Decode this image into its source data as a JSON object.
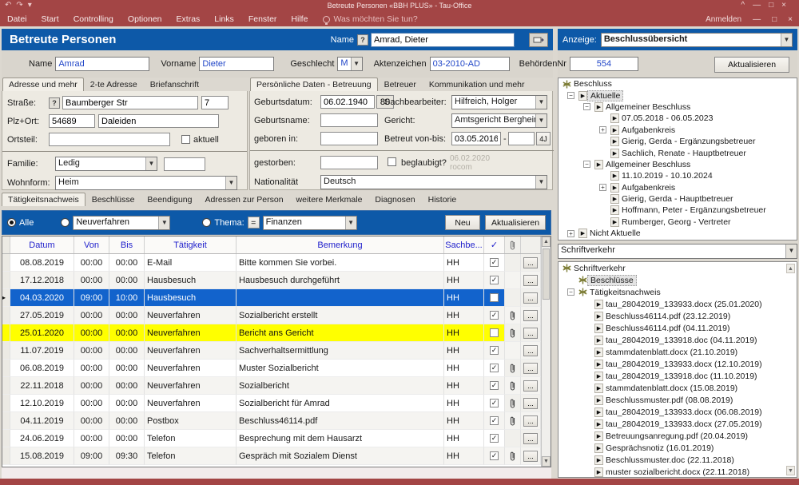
{
  "window": {
    "title": "Betreute Personen «BBH PLUS» - Tau-Office",
    "signin": "Anmelden"
  },
  "menu": {
    "items": [
      "Datei",
      "Start",
      "Controlling",
      "Optionen",
      "Extras",
      "Links",
      "Fenster",
      "Hilfe"
    ],
    "tellme": "Was möchten Sie tun?"
  },
  "header": {
    "title": "Betreute Personen",
    "name_label": "Name",
    "name_value": "Amrad, Dieter",
    "help_button": "?"
  },
  "person": {
    "labels": {
      "name": "Name",
      "vorname": "Vorname",
      "geschlecht": "Geschlecht",
      "aktenzeichen": "Aktenzeichen",
      "behoerde": "BehördenNr"
    },
    "values": {
      "name": "Amrad",
      "vorname": "Dieter",
      "geschlecht": "M",
      "aktenzeichen": "03-2010-AD",
      "behoerde": "554"
    }
  },
  "address_panel": {
    "tabs": [
      "Adresse und mehr",
      "2-te Adresse",
      "Briefanschrift"
    ],
    "active_tab": 0,
    "labels": {
      "strasse": "Straße:",
      "plzort": "Plz+Ort:",
      "ortsteil": "Ortsteil:",
      "aktuell": "aktuell",
      "familie": "Familie:",
      "wohnform": "Wohnform:",
      "help_button": "?"
    },
    "values": {
      "strasse": "Baumberger Str",
      "hausnr": "7",
      "plz": "54689",
      "ort": "Daleiden",
      "ortsteil": "",
      "familie": "Ledig",
      "wohnform": "Heim"
    }
  },
  "personal_panel": {
    "tabs": [
      "Persönliche Daten - Betreuung",
      "Betreuer",
      "Kommunikation und mehr"
    ],
    "active_tab": 0,
    "labels": {
      "geburtsdatum": "Geburtsdatum:",
      "geburtsname": "Geburtsname:",
      "geboren_in": "geboren in:",
      "gestorben": "gestorben:",
      "beglaubigt": "beglaubigt?",
      "nationalitaet": "Nationalität",
      "sachbearbeiter": "Sachbearbeiter:",
      "gericht": "Gericht:",
      "betreut": "Betreut von-bis:"
    },
    "values": {
      "geburtsdatum": "06.02.1940",
      "alter": "80",
      "geburtsname": "",
      "geboren_in": "",
      "gestorben": "",
      "nationalitaet": "Deutsch",
      "sachbearbeiter": "Hilfreich, Holger",
      "gericht": "Amtsgericht Bergheim",
      "betreut_von": "03.05.2016",
      "betreut_bis": "",
      "dash": "-",
      "jahre_button": "4J",
      "watermark_date": "06.02.2020",
      "watermark_brand": "rocom"
    }
  },
  "section_tabs": {
    "tabs": [
      "Tätigkeitsnachweis",
      "Beschlüsse",
      "Beendigung",
      "Adressen zur Person",
      "weitere Merkmale",
      "Diagnosen",
      "Historie"
    ],
    "active": 0
  },
  "filter": {
    "alle": "Alle",
    "verfahren": "Neuverfahren",
    "thema_label": "Thema:",
    "equals": "=",
    "thema": "Finanzen",
    "neu_button": "Neu",
    "aktualisieren_button": "Aktualisieren"
  },
  "activity_table": {
    "columns": [
      "Datum",
      "Von",
      "Bis",
      "Tätigkeit",
      "Bemerkung",
      "Sachbe..."
    ],
    "check_header": "✓",
    "dots_label": "...",
    "rows": [
      {
        "datum": "08.08.2019",
        "von": "00:00",
        "bis": "00:00",
        "taetigkeit": "E-Mail",
        "bemerkung": "Bitte kommen Sie vorbei.",
        "sb": "HH",
        "checked": true,
        "clip": false,
        "state": "normal"
      },
      {
        "datum": "17.12.2018",
        "von": "00:00",
        "bis": "00:00",
        "taetigkeit": "Hausbesuch",
        "bemerkung": "Hausbesuch durchgeführt",
        "sb": "HH",
        "checked": true,
        "clip": false,
        "state": "normal"
      },
      {
        "datum": "04.03.2020",
        "von": "09:00",
        "bis": "10:00",
        "taetigkeit": "Hausbesuch",
        "bemerkung": "",
        "sb": "HH",
        "checked": false,
        "clip": false,
        "state": "selected"
      },
      {
        "datum": "27.05.2019",
        "von": "00:00",
        "bis": "00:00",
        "taetigkeit": "Neuverfahren",
        "bemerkung": "Sozialbericht erstellt",
        "sb": "HH",
        "checked": true,
        "clip": true,
        "state": "normal"
      },
      {
        "datum": "25.01.2020",
        "von": "00:00",
        "bis": "00:00",
        "taetigkeit": "Neuverfahren",
        "bemerkung": "Bericht ans Gericht",
        "sb": "HH",
        "checked": false,
        "clip": true,
        "state": "highlight"
      },
      {
        "datum": "11.07.2019",
        "von": "00:00",
        "bis": "00:00",
        "taetigkeit": "Neuverfahren",
        "bemerkung": "Sachverhaltsermittlung",
        "sb": "HH",
        "checked": true,
        "clip": false,
        "state": "normal"
      },
      {
        "datum": "06.08.2019",
        "von": "00:00",
        "bis": "00:00",
        "taetigkeit": "Neuverfahren",
        "bemerkung": "Muster Sozialbericht",
        "sb": "HH",
        "checked": true,
        "clip": true,
        "state": "normal"
      },
      {
        "datum": "22.11.2018",
        "von": "00:00",
        "bis": "00:00",
        "taetigkeit": "Neuverfahren",
        "bemerkung": "Sozialbericht",
        "sb": "HH",
        "checked": true,
        "clip": true,
        "state": "normal"
      },
      {
        "datum": "12.10.2019",
        "von": "00:00",
        "bis": "00:00",
        "taetigkeit": "Neuverfahren",
        "bemerkung": "Sozialbericht für Amrad",
        "sb": "HH",
        "checked": true,
        "clip": true,
        "state": "normal"
      },
      {
        "datum": "04.11.2019",
        "von": "00:00",
        "bis": "00:00",
        "taetigkeit": "Postbox",
        "bemerkung": "Beschluss46114.pdf",
        "sb": "HH",
        "checked": true,
        "clip": true,
        "state": "normal"
      },
      {
        "datum": "24.06.2019",
        "von": "00:00",
        "bis": "00:00",
        "taetigkeit": "Telefon",
        "bemerkung": "Besprechung mit dem Hausarzt",
        "sb": "HH",
        "checked": true,
        "clip": false,
        "state": "normal"
      },
      {
        "datum": "15.08.2019",
        "von": "09:00",
        "bis": "09:30",
        "taetigkeit": "Telefon",
        "bemerkung": "Gespräch mit Sozialem Dienst",
        "sb": "HH",
        "checked": true,
        "clip": true,
        "state": "normal"
      }
    ]
  },
  "right_panel": {
    "anzeige_label": "Anzeige:",
    "anzeige_value": "Beschlussübersicht",
    "aktualisieren_button": "Aktualisieren",
    "beschluss_tree": [
      {
        "label": "Beschluss",
        "level": 0,
        "icon": "root",
        "exp": "none"
      },
      {
        "label": "Aktuelle",
        "level": 1,
        "icon": "arrow",
        "exp": "minus",
        "selected": true
      },
      {
        "label": "Allgemeiner Beschluss",
        "level": 2,
        "icon": "arrow",
        "exp": "minus"
      },
      {
        "label": "07.05.2018 - 06.05.2023",
        "level": 3,
        "icon": "arrow",
        "exp": "none"
      },
      {
        "label": "Aufgabenkreis",
        "level": 3,
        "icon": "arrow",
        "exp": "plus"
      },
      {
        "label": "Gierig, Gerda - Ergänzungsbetreuer",
        "level": 3,
        "icon": "arrow",
        "exp": "none"
      },
      {
        "label": "Sachlich, Renate - Hauptbetreuer",
        "level": 3,
        "icon": "arrow",
        "exp": "none"
      },
      {
        "label": "Allgemeiner Beschluss",
        "level": 2,
        "icon": "arrow",
        "exp": "minus"
      },
      {
        "label": "11.10.2019 - 10.10.2024",
        "level": 3,
        "icon": "arrow",
        "exp": "none"
      },
      {
        "label": "Aufgabenkreis",
        "level": 3,
        "icon": "arrow",
        "exp": "plus"
      },
      {
        "label": "Gierig, Gerda - Hauptbetreuer",
        "level": 3,
        "icon": "arrow",
        "exp": "none"
      },
      {
        "label": "Hoffmann, Peter - Ergänzungsbetreuer",
        "level": 3,
        "icon": "arrow",
        "exp": "none"
      },
      {
        "label": "Rumberger, Georg - Vertreter",
        "level": 3,
        "icon": "arrow",
        "exp": "none"
      },
      {
        "label": "Nicht Aktuelle",
        "level": 1,
        "icon": "arrow",
        "exp": "plus"
      }
    ],
    "schriftverkehr_combo": "Schriftverkehr",
    "schriftverkehr_tree": [
      {
        "label": "Schriftverkehr",
        "level": 0,
        "icon": "root",
        "exp": "none"
      },
      {
        "label": "Beschlüsse",
        "level": 1,
        "icon": "root",
        "exp": "none",
        "selected": true
      },
      {
        "label": "Tätigkeitsnachweis",
        "level": 1,
        "icon": "root",
        "exp": "minus"
      },
      {
        "label": "tau_28042019_133933.docx (25.01.2020)",
        "level": 2,
        "icon": "arrow",
        "exp": "none"
      },
      {
        "label": "Beschluss46114.pdf (23.12.2019)",
        "level": 2,
        "icon": "arrow",
        "exp": "none"
      },
      {
        "label": "Beschluss46114.pdf (04.11.2019)",
        "level": 2,
        "icon": "arrow",
        "exp": "none"
      },
      {
        "label": "tau_28042019_133918.doc (04.11.2019)",
        "level": 2,
        "icon": "arrow",
        "exp": "none"
      },
      {
        "label": "stammdatenblatt.docx (21.10.2019)",
        "level": 2,
        "icon": "arrow",
        "exp": "none"
      },
      {
        "label": "tau_28042019_133933.docx (12.10.2019)",
        "level": 2,
        "icon": "arrow",
        "exp": "none"
      },
      {
        "label": "tau_28042019_133918.doc (11.10.2019)",
        "level": 2,
        "icon": "arrow",
        "exp": "none"
      },
      {
        "label": "stammdatenblatt.docx (15.08.2019)",
        "level": 2,
        "icon": "arrow",
        "exp": "none"
      },
      {
        "label": "Beschlussmuster.pdf (08.08.2019)",
        "level": 2,
        "icon": "arrow",
        "exp": "none"
      },
      {
        "label": "tau_28042019_133933.docx (06.08.2019)",
        "level": 2,
        "icon": "arrow",
        "exp": "none"
      },
      {
        "label": "tau_28042019_133933.docx (27.05.2019)",
        "level": 2,
        "icon": "arrow",
        "exp": "none"
      },
      {
        "label": "Betreuungsanregung.pdf (20.04.2019)",
        "level": 2,
        "icon": "arrow",
        "exp": "none"
      },
      {
        "label": "Gesprächsnotiz (16.01.2019)",
        "level": 2,
        "icon": "arrow",
        "exp": "none"
      },
      {
        "label": "Beschlussmuster.doc (22.11.2018)",
        "level": 2,
        "icon": "arrow",
        "exp": "none"
      },
      {
        "label": "muster sozialbericht.docx (22.11.2018)",
        "level": 2,
        "icon": "arrow",
        "exp": "none"
      }
    ]
  },
  "colors": {
    "ribbon_red": "#a34545",
    "accent_blue": "#0d59a8",
    "selected_row": "#1263cc",
    "highlight_row": "#ffff00",
    "value_blue": "#2247c8"
  }
}
